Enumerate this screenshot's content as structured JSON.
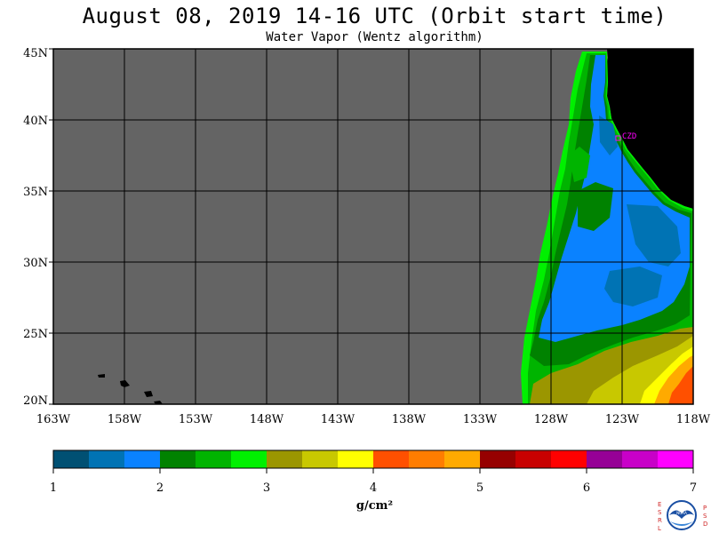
{
  "title": "August 08, 2019  14-16 UTC  (Orbit start time)",
  "subtitle": "Water Vapor (Wentz algorithm)",
  "units": "g/cm²",
  "station_label": "CZD",
  "lat_labels": [
    "45N",
    "40N",
    "35N",
    "30N",
    "25N",
    "20N"
  ],
  "lon_labels": [
    "163W",
    "158W",
    "153W",
    "148W",
    "143W",
    "138W",
    "133W",
    "128W",
    "123W",
    "118W"
  ],
  "colorbar": {
    "tick_labels": [
      "1",
      "2",
      "3",
      "4",
      "5",
      "6",
      "7"
    ],
    "colors": [
      "#005073",
      "#0073b4",
      "#0a82ff",
      "#008200",
      "#00b400",
      "#00f000",
      "#9b9600",
      "#c8c800",
      "#ffff00",
      "#ff5000",
      "#ff7d00",
      "#ffaa00",
      "#960000",
      "#c80000",
      "#ff0000",
      "#960096",
      "#c800c8",
      "#ff00ff"
    ]
  },
  "map_colors": {
    "no_data": "#646464",
    "land": "#000000",
    "grid": "#000000"
  },
  "logo": {
    "left_letters": [
      "E",
      "S",
      "R",
      "L"
    ],
    "right_letters": [
      "P",
      "S",
      "D"
    ],
    "center": "NOAA"
  }
}
